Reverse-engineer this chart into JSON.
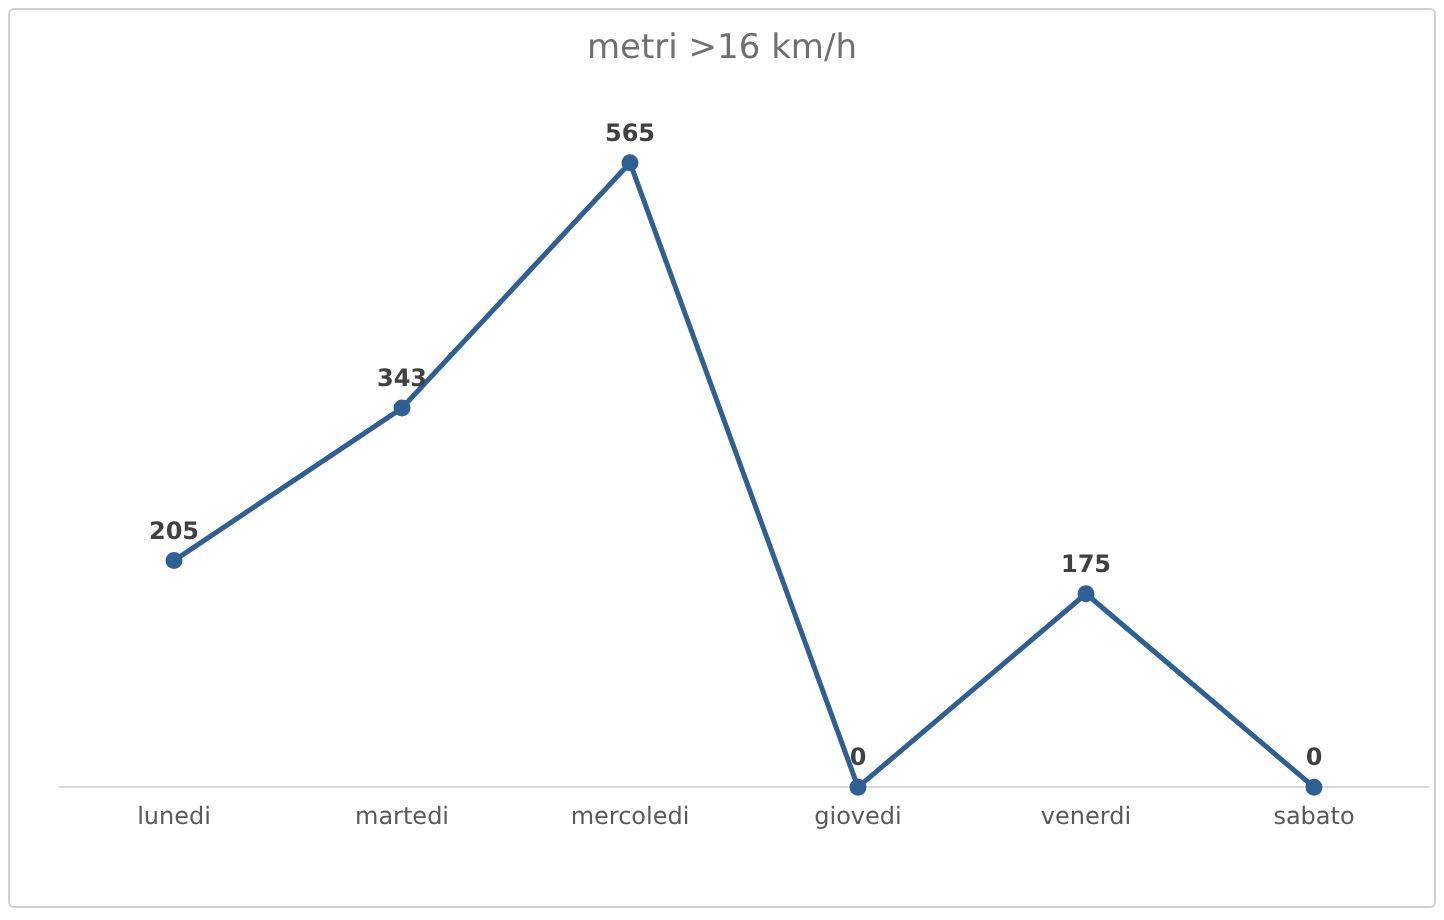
{
  "chart_data": {
    "type": "line",
    "title": "metri >16 km/h",
    "categories": [
      "lunedi",
      "martedi",
      "mercoledi",
      "giovedi",
      "venerdi",
      "sabato"
    ],
    "series": [
      {
        "color": "#2e6095",
        "values": [
          205,
          343,
          565,
          0,
          175,
          0
        ]
      }
    ],
    "data_labels": true,
    "marker": "circle",
    "line_style": "solid",
    "grid": false,
    "legend": false,
    "tick_labels": "x"
  }
}
